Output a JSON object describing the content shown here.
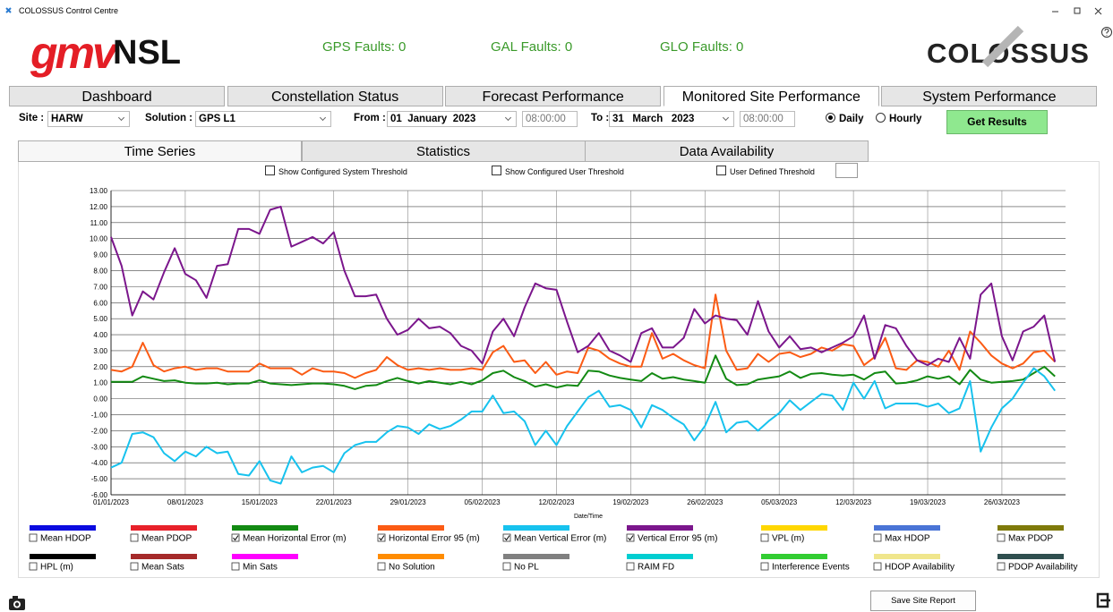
{
  "window": {
    "title": "COLOSSUS Control Centre"
  },
  "header": {
    "logo_left": "gmv",
    "logo_left_suffix": "NSL",
    "logo_right": "COLOSSUS",
    "faults": [
      {
        "label": "GPS Faults:",
        "value": 0
      },
      {
        "label": "GAL Faults:",
        "value": 0
      },
      {
        "label": "GLO Faults:",
        "value": 0
      }
    ]
  },
  "tabs": {
    "items": [
      "Dashboard",
      "Constellation Status",
      "Forecast Performance",
      "Monitored Site Performance",
      "System Performance"
    ],
    "selected": 3
  },
  "controls": {
    "site_label": "Site :",
    "site": "HARW",
    "solution_label": "Solution :",
    "solution": "GPS L1",
    "from_label": "From :",
    "from": {
      "day": "01",
      "month": "January",
      "year": "2023",
      "time": "08:00:00"
    },
    "to_label": "To :",
    "to": {
      "day": "31",
      "month": "March",
      "year": "2023",
      "time": "08:00:00"
    },
    "modes": [
      {
        "label": "Daily",
        "selected": true
      },
      {
        "label": "Hourly",
        "selected": false
      }
    ],
    "button": "Get Results"
  },
  "subtabs": {
    "items": [
      "Time Series",
      "Statistics",
      "Data Availability"
    ],
    "selected": 0
  },
  "thresholds": [
    {
      "label": "Show Configured System Threshold",
      "checked": false
    },
    {
      "label": "Show Configured User Threshold",
      "checked": false
    },
    {
      "label": "User Defined Threshold",
      "checked": false
    }
  ],
  "chart_data": {
    "type": "line",
    "x_label": "Date/Time",
    "categories": [
      "01/01/2023",
      null,
      null,
      null,
      null,
      null,
      null,
      "08/01/2023",
      null,
      null,
      null,
      null,
      null,
      null,
      "15/01/2023",
      null,
      null,
      null,
      null,
      null,
      null,
      "22/01/2023",
      null,
      null,
      null,
      null,
      null,
      null,
      "29/01/2023",
      null,
      null,
      null,
      null,
      null,
      null,
      "05/02/2023",
      null,
      null,
      null,
      null,
      null,
      null,
      "12/02/2023",
      null,
      null,
      null,
      null,
      null,
      null,
      "19/02/2023",
      null,
      null,
      null,
      null,
      null,
      null,
      "26/02/2023",
      null,
      null,
      null,
      null,
      null,
      null,
      "05/03/2023",
      null,
      null,
      null,
      null,
      null,
      null,
      "12/03/2023",
      null,
      null,
      null,
      null,
      null,
      null,
      "19/03/2023",
      null,
      null,
      null,
      null,
      null,
      null,
      "26/03/2023",
      null,
      null,
      null,
      null,
      null
    ],
    "ylim": [
      -6,
      13
    ],
    "yticks": [
      {
        "value": 13,
        "label": "13.00"
      },
      {
        "value": 12,
        "label": "12.00"
      },
      {
        "value": 11,
        "label": "11.00"
      },
      {
        "value": 10,
        "label": "10.00"
      },
      {
        "value": 9,
        "label": "9.00"
      },
      {
        "value": 8,
        "label": "8.00"
      },
      {
        "value": 7,
        "label": "7.00"
      },
      {
        "value": 6,
        "label": "6.00"
      },
      {
        "value": 5,
        "label": "5.00"
      },
      {
        "value": 4,
        "label": "4.00"
      },
      {
        "value": 3,
        "label": "3.00"
      },
      {
        "value": 2,
        "label": "2.00"
      },
      {
        "value": 1,
        "label": "1.00"
      },
      {
        "value": 0,
        "label": "0.00"
      },
      {
        "value": -1,
        "label": "-1.00"
      },
      {
        "value": -2,
        "label": "-2.00"
      },
      {
        "value": -3,
        "label": "-3.00"
      },
      {
        "value": -4,
        "label": "-4.00"
      },
      {
        "value": -5,
        "label": "-5.00"
      },
      {
        "value": -6,
        "label": "-6.00"
      }
    ],
    "grid": true,
    "series": [
      {
        "name": "Mean HDOP",
        "color": "#0a0ae0",
        "checked": false
      },
      {
        "name": "Mean PDOP",
        "color": "#e8212a",
        "checked": false
      },
      {
        "name": "Mean Horizontal Error (m)",
        "color": "#138a13",
        "checked": true,
        "values": [
          1.05,
          1.05,
          1.05,
          1.4,
          1.25,
          1.1,
          1.15,
          1.0,
          0.95,
          0.95,
          1.0,
          0.9,
          0.95,
          0.95,
          1.15,
          0.95,
          0.9,
          0.85,
          0.9,
          0.95,
          0.95,
          0.9,
          0.8,
          0.6,
          0.8,
          0.85,
          1.1,
          1.3,
          1.1,
          0.95,
          1.1,
          1.0,
          0.9,
          1.05,
          0.9,
          1.15,
          1.6,
          1.75,
          1.35,
          1.1,
          0.75,
          0.9,
          0.7,
          0.85,
          0.8,
          1.75,
          1.7,
          1.45,
          1.3,
          1.2,
          1.1,
          1.6,
          1.25,
          1.35,
          1.2,
          1.1,
          1.0,
          2.7,
          1.25,
          0.85,
          0.9,
          1.2,
          1.3,
          1.4,
          1.7,
          1.3,
          1.55,
          1.6,
          1.5,
          1.45,
          1.5,
          1.2,
          1.6,
          1.7,
          0.95,
          1.0,
          1.15,
          1.4,
          1.25,
          1.4,
          0.9,
          1.8,
          1.2,
          1.0,
          1.05,
          1.1,
          1.2,
          1.6,
          2.0,
          1.4
        ]
      },
      {
        "name": "Horizontal Error 95 (m)",
        "color": "#fb5b14",
        "checked": true,
        "values": [
          1.8,
          1.7,
          2.0,
          3.5,
          2.1,
          1.7,
          1.9,
          2.0,
          1.8,
          1.9,
          1.9,
          1.7,
          1.7,
          1.7,
          2.2,
          1.9,
          1.9,
          1.9,
          1.5,
          1.9,
          1.7,
          1.7,
          1.6,
          1.3,
          1.6,
          1.8,
          2.6,
          2.1,
          1.8,
          1.9,
          1.8,
          1.9,
          1.8,
          1.8,
          1.9,
          1.8,
          2.9,
          3.3,
          2.3,
          2.4,
          1.6,
          2.3,
          1.5,
          1.7,
          1.6,
          3.2,
          3.0,
          2.5,
          2.2,
          2.0,
          2.0,
          4.1,
          2.5,
          2.8,
          2.4,
          2.1,
          1.9,
          6.5,
          3.0,
          1.8,
          1.9,
          2.8,
          2.3,
          2.8,
          2.9,
          2.6,
          2.8,
          3.2,
          3.0,
          3.4,
          3.3,
          2.1,
          2.6,
          3.8,
          1.9,
          1.8,
          2.4,
          2.3,
          2.0,
          3.0,
          1.8,
          4.2,
          3.5,
          2.7,
          2.2,
          1.9,
          2.2,
          2.9,
          3.0,
          2.3
        ]
      },
      {
        "name": "Mean Vertical Error (m)",
        "color": "#17c2ee",
        "checked": true,
        "values": [
          -4.3,
          -4.0,
          -2.2,
          -2.1,
          -2.4,
          -3.4,
          -3.9,
          -3.3,
          -3.6,
          -3.0,
          -3.4,
          -3.3,
          -4.7,
          -4.8,
          -3.9,
          -5.1,
          -5.3,
          -3.6,
          -4.6,
          -4.3,
          -4.2,
          -4.6,
          -3.4,
          -2.9,
          -2.7,
          -2.7,
          -2.1,
          -1.7,
          -1.8,
          -2.2,
          -1.6,
          -1.9,
          -1.7,
          -1.3,
          -0.8,
          -0.8,
          0.2,
          -0.9,
          -0.8,
          -1.4,
          -2.9,
          -2.0,
          -2.9,
          -1.7,
          -0.8,
          0.1,
          0.5,
          -0.5,
          -0.4,
          -0.7,
          -1.8,
          -0.4,
          -0.7,
          -1.2,
          -1.6,
          -2.6,
          -1.7,
          -0.2,
          -2.1,
          -1.5,
          -1.4,
          -2.0,
          -1.4,
          -0.9,
          -0.1,
          -0.7,
          -0.2,
          0.3,
          0.2,
          -0.7,
          1.0,
          0.0,
          1.1,
          -0.6,
          -0.3,
          -0.3,
          -0.3,
          -0.5,
          -0.3,
          -0.9,
          -0.6,
          1.1,
          -3.3,
          -1.8,
          -0.6,
          0.0,
          1.0,
          1.9,
          1.4,
          0.5
        ]
      },
      {
        "name": "Vertical Error 95 (m)",
        "color": "#7b168c",
        "checked": true,
        "values": [
          10.1,
          8.3,
          5.2,
          6.7,
          6.2,
          7.9,
          9.4,
          7.8,
          7.4,
          6.3,
          8.3,
          8.4,
          10.6,
          10.6,
          10.3,
          11.8,
          12.0,
          9.5,
          9.8,
          10.1,
          9.7,
          10.4,
          8.0,
          6.4,
          6.4,
          6.5,
          5.0,
          4.0,
          4.3,
          5.0,
          4.4,
          4.5,
          4.1,
          3.3,
          3.0,
          2.2,
          4.2,
          5.0,
          3.9,
          5.7,
          7.2,
          6.9,
          6.8,
          4.8,
          2.9,
          3.3,
          4.1,
          3.0,
          2.7,
          2.3,
          4.1,
          4.4,
          3.2,
          3.2,
          3.8,
          5.6,
          4.7,
          5.2,
          5.0,
          4.9,
          4.0,
          6.1,
          4.2,
          3.2,
          3.9,
          3.1,
          3.2,
          2.9,
          3.2,
          3.5,
          3.9,
          5.2,
          2.5,
          4.6,
          4.4,
          3.3,
          2.4,
          2.1,
          2.5,
          2.3,
          3.8,
          2.5,
          6.5,
          7.2,
          3.9,
          2.4,
          4.2,
          4.5,
          5.2,
          2.3
        ]
      },
      {
        "name": "VPL (m)",
        "color": "#ffd700",
        "checked": false
      },
      {
        "name": "Max HDOP",
        "color": "#4a74d6",
        "checked": false
      },
      {
        "name": "Max PDOP",
        "color": "#7f7a0a",
        "checked": false
      },
      {
        "name": "HPL (m)",
        "color": "#000000",
        "checked": false
      },
      {
        "name": "Mean Sats",
        "color": "#a52a2a",
        "checked": false
      },
      {
        "name": "Min Sats",
        "color": "#ff00ff",
        "checked": false
      },
      {
        "name": "No Solution",
        "color": "#ff8c00",
        "checked": false
      },
      {
        "name": "No PL",
        "color": "#808080",
        "checked": false
      },
      {
        "name": "RAIM FD",
        "color": "#00ced1",
        "checked": false
      },
      {
        "name": "Interference Events",
        "color": "#32cd32",
        "checked": false
      },
      {
        "name": "HDOP Availability",
        "color": "#f0e68c",
        "checked": false
      },
      {
        "name": "PDOP Availability",
        "color": "#2f4f4f",
        "checked": false
      }
    ]
  },
  "footer": {
    "button": "Save Site Report"
  }
}
